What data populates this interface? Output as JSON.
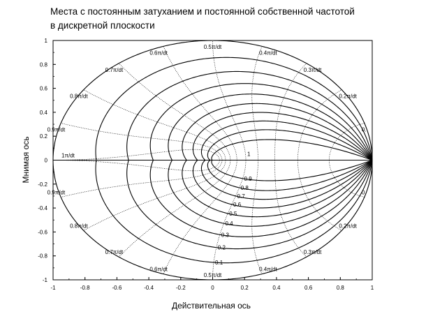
{
  "chart_data": {
    "type": "line",
    "title_line1": "Места с постоянным затуханием и постоянной собственной частотой",
    "title_line2": "в дискретной плоскости",
    "xlabel": "Действительная ось",
    "ylabel": "Мнимая ось",
    "xlim": [
      -1,
      1
    ],
    "ylim": [
      -1,
      1
    ],
    "xticks": [
      "-1",
      "-0.8",
      "-0.6",
      "-0.4",
      "-0.2",
      "0",
      "0.2",
      "0.4",
      "0.6",
      "0.8",
      "1"
    ],
    "yticks": [
      "-1",
      "-0.8",
      "-0.6",
      "-0.4",
      "-0.2",
      "0",
      "0.2",
      "0.4",
      "0.6",
      "0.8",
      "1"
    ],
    "damping_values": [
      0,
      0.1,
      0.2,
      0.3,
      0.4,
      0.5,
      0.6,
      0.7,
      0.8,
      0.9,
      1
    ],
    "damping_labels": [
      "0.1",
      "0.2",
      "0.3",
      "0.4",
      "0.5",
      "0.6",
      "0.7",
      "0.8",
      "0.9",
      "1"
    ],
    "frequency_values": [
      0.1,
      0.2,
      0.3,
      0.4,
      0.5,
      0.6,
      0.7,
      0.8,
      0.9,
      1.0
    ],
    "frequency_labels_upper": [
      "0.",
      "0.2π/dt",
      "0.3π/dt",
      "0.4π/dt",
      "0.5π/dt",
      "0.6π/dt",
      "0.7π/dt",
      "0.8π/dt",
      "0.9π/dt",
      "1π/dt"
    ],
    "frequency_labels_lower": [
      "0.",
      "0.2π/dt",
      "0.3π/dt",
      "0.4π/dt",
      "0.5π/dt",
      "0.6π/dt",
      "0.7π/dt",
      "0.8π/dt",
      "0.9π/dt",
      "1π/dt"
    ],
    "grid": false
  }
}
